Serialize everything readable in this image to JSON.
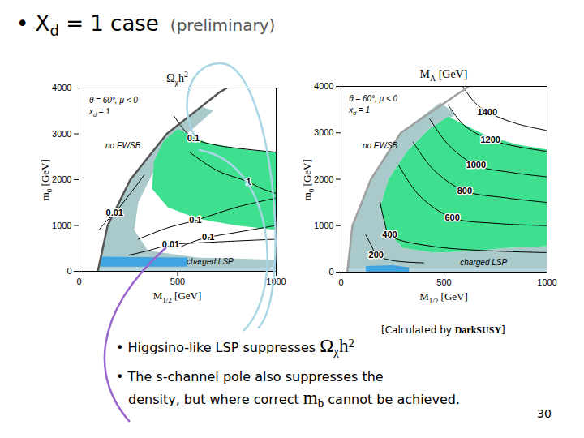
{
  "slide": {
    "title": [
      {
        "t": "• X"
      },
      {
        "t": "d",
        "sub": true
      },
      {
        "t": " = 1 case"
      }
    ],
    "note": "(preliminary)",
    "bullets": [
      [
        [
          {
            "t": "• Higgsino-like LSP suppresses "
          },
          {
            "t": "Ω",
            "math": true
          },
          {
            "t": "χ",
            "math": true,
            "sub": true
          },
          {
            "t": "h",
            "math": true
          },
          {
            "t": "2",
            "math": true,
            "sup": true
          }
        ]
      ],
      [
        [
          {
            "t": "• The s-channel pole also suppresses the"
          }
        ],
        [
          {
            "t": "density, but where correct "
          },
          {
            "t": "m",
            "math": true
          },
          {
            "t": "b",
            "math": true,
            "sub": true
          },
          {
            "t": " cannot be achieved."
          }
        ]
      ]
    ],
    "credit": [
      {
        "t": "[Calculated by "
      },
      {
        "t": "DarkSUSY",
        "bold": true
      },
      {
        "t": "]"
      }
    ],
    "page": 30
  },
  "chart_data": [
    {
      "type": "contour",
      "title": [
        {
          "t": "Ω"
        },
        {
          "t": "χ",
          "sub": true
        },
        {
          "t": "h"
        },
        {
          "t": "2",
          "sup": true
        }
      ],
      "xlabel": [
        {
          "t": "M"
        },
        {
          "t": "1/2",
          "sub": true
        },
        {
          "t": " [GeV]"
        }
      ],
      "ylabel": [
        {
          "t": "m"
        },
        {
          "t": "0",
          "sub": true
        },
        {
          "t": " [GeV]"
        }
      ],
      "xlim": [
        0,
        1000
      ],
      "ylim": [
        0,
        4000
      ],
      "xticks": [
        0,
        500,
        1000
      ],
      "yticks": [
        0,
        1000,
        2000,
        3000,
        4000
      ],
      "regions": [
        {
          "color": "#a9c9cb",
          "points": [
            [
              95,
              0
            ],
            [
              145,
              1000
            ],
            [
              260,
              2000
            ],
            [
              445,
              3000
            ],
            [
              620,
              3600
            ],
            [
              680,
              3500
            ],
            [
              520,
              2900
            ],
            [
              380,
              2200
            ],
            [
              300,
              1500
            ],
            [
              280,
              900
            ],
            [
              350,
              450
            ],
            [
              600,
              300
            ],
            [
              1000,
              250
            ],
            [
              1000,
              0
            ]
          ]
        },
        {
          "color": "#b9d5dd",
          "points": [
            [
              95,
              0
            ],
            [
              1000,
              0
            ],
            [
              1000,
              80
            ],
            [
              95,
              80
            ]
          ]
        },
        {
          "color": "#3ee08f",
          "points": [
            [
              500,
              3100
            ],
            [
              650,
              2800
            ],
            [
              850,
              2650
            ],
            [
              1000,
              2600
            ],
            [
              1000,
              900
            ],
            [
              800,
              1000
            ],
            [
              600,
              1150
            ],
            [
              450,
              1400
            ],
            [
              370,
              1800
            ],
            [
              380,
              2400
            ],
            [
              430,
              2850
            ]
          ]
        },
        {
          "color": "#3fa4e0",
          "points": [
            [
              110,
              100
            ],
            [
              550,
              100
            ],
            [
              550,
              300
            ],
            [
              110,
              320
            ]
          ]
        }
      ],
      "boundary": {
        "color": "#555555",
        "points": [
          [
            95,
            0
          ],
          [
            145,
            1000
          ],
          [
            260,
            2000
          ],
          [
            445,
            3000
          ],
          [
            710,
            3900
          ],
          [
            750,
            4000
          ]
        ]
      },
      "contour_color": "#000000",
      "contours": [
        {
          "level": 0.1,
          "points": [
            [
              480,
              3400
            ],
            [
              530,
              3100
            ],
            [
              580,
              2900
            ],
            [
              700,
              2750
            ],
            [
              1000,
              2600
            ]
          ]
        },
        {
          "level": 1,
          "points": [
            [
              560,
              2600
            ],
            [
              700,
              2200
            ],
            [
              860,
              1950
            ],
            [
              930,
              1800
            ],
            [
              1000,
              1700
            ]
          ]
        },
        {
          "level": 0.01,
          "points": [
            [
              100,
              900
            ],
            [
              140,
              1100
            ],
            [
              180,
              1270
            ],
            [
              260,
              1700
            ],
            [
              330,
              2100
            ]
          ]
        },
        {
          "level": 0.1,
          "points": [
            [
              300,
              700
            ],
            [
              450,
              950
            ],
            [
              590,
              1110
            ],
            [
              800,
              1400
            ],
            [
              1000,
              1600
            ]
          ]
        },
        {
          "level": 0.01,
          "points": [
            [
              250,
              350
            ],
            [
              350,
              450
            ],
            [
              465,
              580
            ],
            [
              600,
              620
            ],
            [
              1000,
              700
            ]
          ]
        },
        {
          "level": 0.1,
          "points": [
            [
              500,
              500
            ],
            [
              580,
              650
            ],
            [
              655,
              740
            ],
            [
              800,
              850
            ],
            [
              1000,
              1000
            ]
          ]
        }
      ],
      "annotations": [
        {
          "text": [
            {
              "t": "θ = 60°,  μ < 0"
            }
          ],
          "x": 53,
          "y": 3700
        },
        {
          "text": [
            {
              "t": "x"
            },
            {
              "t": "d",
              "sub": true
            },
            {
              "t": " = 1"
            }
          ],
          "x": 53,
          "y": 3450
        },
        {
          "text": [
            {
              "t": "no EWSB"
            }
          ],
          "x": 136,
          "y": 2700
        },
        {
          "text": [
            {
              "t": "charged LSP"
            }
          ],
          "x": 547,
          "y": 180
        }
      ]
    },
    {
      "type": "contour",
      "title": [
        {
          "t": "M"
        },
        {
          "t": "A",
          "sub": true
        },
        {
          "t": " [GeV]"
        }
      ],
      "xlabel": [
        {
          "t": "M"
        },
        {
          "t": "1/2",
          "sub": true
        },
        {
          "t": " [GeV]"
        }
      ],
      "ylabel": [
        {
          "t": "m"
        },
        {
          "t": "0",
          "sub": true
        },
        {
          "t": " [GeV]"
        }
      ],
      "xlim": [
        0,
        1000
      ],
      "ylim": [
        0,
        4000
      ],
      "xticks": [
        0,
        500,
        1000
      ],
      "yticks": [
        0,
        1000,
        2000,
        3000,
        4000
      ],
      "regions": [
        {
          "color": "#a9c9cb",
          "points": [
            [
              30,
              0
            ],
            [
              55,
              1000
            ],
            [
              145,
              2000
            ],
            [
              290,
              3000
            ],
            [
              480,
              3650
            ],
            [
              560,
              3400
            ],
            [
              420,
              3050
            ],
            [
              320,
              2600
            ],
            [
              230,
              2000
            ],
            [
              190,
              1400
            ],
            [
              220,
              900
            ],
            [
              300,
              520
            ],
            [
              450,
              420
            ],
            [
              600,
              440
            ],
            [
              800,
              520
            ],
            [
              1000,
              560
            ],
            [
              1000,
              0
            ]
          ]
        },
        {
          "color": "#b9d5dd",
          "points": [
            [
              30,
              0
            ],
            [
              1000,
              0
            ],
            [
              1000,
              90
            ],
            [
              30,
              90
            ]
          ]
        },
        {
          "color": "#3ee08f",
          "points": [
            [
              520,
              3350
            ],
            [
              700,
              2950
            ],
            [
              850,
              2750
            ],
            [
              1000,
              2640
            ],
            [
              1000,
              560
            ],
            [
              800,
              520
            ],
            [
              600,
              440
            ],
            [
              450,
              420
            ],
            [
              300,
              520
            ],
            [
              220,
              900
            ],
            [
              190,
              1400
            ],
            [
              230,
              2000
            ],
            [
              320,
              2600
            ],
            [
              420,
              3050
            ]
          ]
        },
        {
          "color": "#3fa4e0",
          "points": [
            [
              120,
              0
            ],
            [
              330,
              0
            ],
            [
              330,
              100
            ],
            [
              250,
              150
            ],
            [
              120,
              130
            ]
          ]
        }
      ],
      "boundary": {
        "color": "#a0a0a0",
        "points": [
          [
            30,
            0
          ],
          [
            55,
            1000
          ],
          [
            145,
            2000
          ],
          [
            290,
            3000
          ],
          [
            620,
            4000
          ]
        ]
      },
      "contour_color": "#000000",
      "contours": [
        {
          "level": 1400,
          "points": [
            [
              590,
              4000
            ],
            [
              650,
              3650
            ],
            [
              710,
              3450
            ],
            [
              850,
              3200
            ],
            [
              1000,
              3050
            ]
          ]
        },
        {
          "level": 1200,
          "points": [
            [
              520,
              3600
            ],
            [
              600,
              3150
            ],
            [
              725,
              2850
            ],
            [
              860,
              2700
            ],
            [
              1000,
              2600
            ]
          ]
        },
        {
          "level": 1000,
          "points": [
            [
              430,
              3300
            ],
            [
              520,
              2750
            ],
            [
              655,
              2300
            ],
            [
              820,
              2150
            ],
            [
              1000,
              2050
            ]
          ]
        },
        {
          "level": 800,
          "points": [
            [
              350,
              2800
            ],
            [
              450,
              2200
            ],
            [
              600,
              1750
            ],
            [
              800,
              1600
            ],
            [
              1000,
              1500
            ]
          ]
        },
        {
          "level": 600,
          "points": [
            [
              280,
              2300
            ],
            [
              380,
              1650
            ],
            [
              540,
              1170
            ],
            [
              750,
              1050
            ],
            [
              1000,
              1000
            ]
          ]
        },
        {
          "level": 400,
          "points": [
            [
              190,
              1500
            ],
            [
              210,
              1100
            ],
            [
              236,
              800
            ],
            [
              450,
              550
            ],
            [
              1000,
              420
            ]
          ]
        },
        {
          "level": 200,
          "points": [
            [
              120,
              800
            ],
            [
              150,
              550
            ],
            [
              170,
              370
            ],
            [
              250,
              250
            ],
            [
              400,
              200
            ]
          ]
        }
      ],
      "annotations": [
        {
          "text": [
            {
              "t": "θ = 60°,  μ < 0"
            }
          ],
          "x": 40,
          "y": 3700
        },
        {
          "text": [
            {
              "t": "x"
            },
            {
              "t": "d",
              "sub": true
            },
            {
              "t": " = 1"
            }
          ],
          "x": 40,
          "y": 3450
        },
        {
          "text": [
            {
              "t": "no EWSB"
            }
          ],
          "x": 106,
          "y": 2690
        },
        {
          "text": [
            {
              "t": "charged LSP"
            }
          ],
          "x": 580,
          "y": 175
        }
      ]
    }
  ]
}
